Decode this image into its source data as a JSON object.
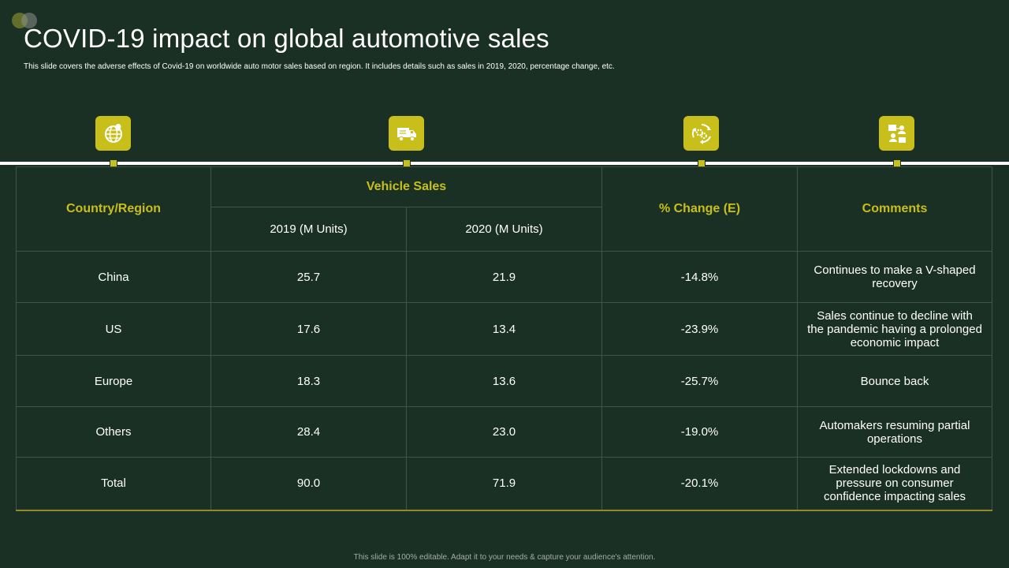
{
  "header": {
    "title": "COVID-19 impact on global automotive sales",
    "subtitle": "This slide covers the adverse effects of Covid-19 on worldwide auto motor sales based on region. It includes details such as sales in 2019, 2020, percentage change, etc."
  },
  "icons": [
    {
      "name": "globe-pin-icon"
    },
    {
      "name": "delivery-truck-icon"
    },
    {
      "name": "gears-cycle-icon"
    },
    {
      "name": "people-network-icon"
    }
  ],
  "table": {
    "headers": {
      "country": "Country/Region",
      "vehicle_sales": "Vehicle Sales",
      "y2019": "2019 (M Units)",
      "y2020": "2020 (M Units)",
      "change": "% Change (E)",
      "comments": "Comments"
    },
    "rows": [
      {
        "country": "China",
        "y2019": "25.7",
        "y2020": "21.9",
        "change": "-14.8%",
        "comment": "Continues to make a V-shaped recovery"
      },
      {
        "country": "US",
        "y2019": "17.6",
        "y2020": "13.4",
        "change": "-23.9%",
        "comment": "Sales continue to decline with the pandemic having a prolonged economic impact"
      },
      {
        "country": "Europe",
        "y2019": "18.3",
        "y2020": "13.6",
        "change": "-25.7%",
        "comment": "Bounce back"
      },
      {
        "country": "Others",
        "y2019": "28.4",
        "y2020": "23.0",
        "change": "-19.0%",
        "comment": "Automakers resuming partial operations"
      },
      {
        "country": "Total",
        "y2019": "90.0",
        "y2020": "71.9",
        "change": "-20.1%",
        "comment": "Extended lockdowns and pressure on consumer confidence impacting sales"
      }
    ]
  },
  "footer": {
    "text": "This slide is 100% editable. Adapt it to your needs & capture your audience's attention."
  },
  "colors": {
    "background": "#1b3025",
    "accent": "#c8bf1a",
    "grid": "#3f5346"
  }
}
